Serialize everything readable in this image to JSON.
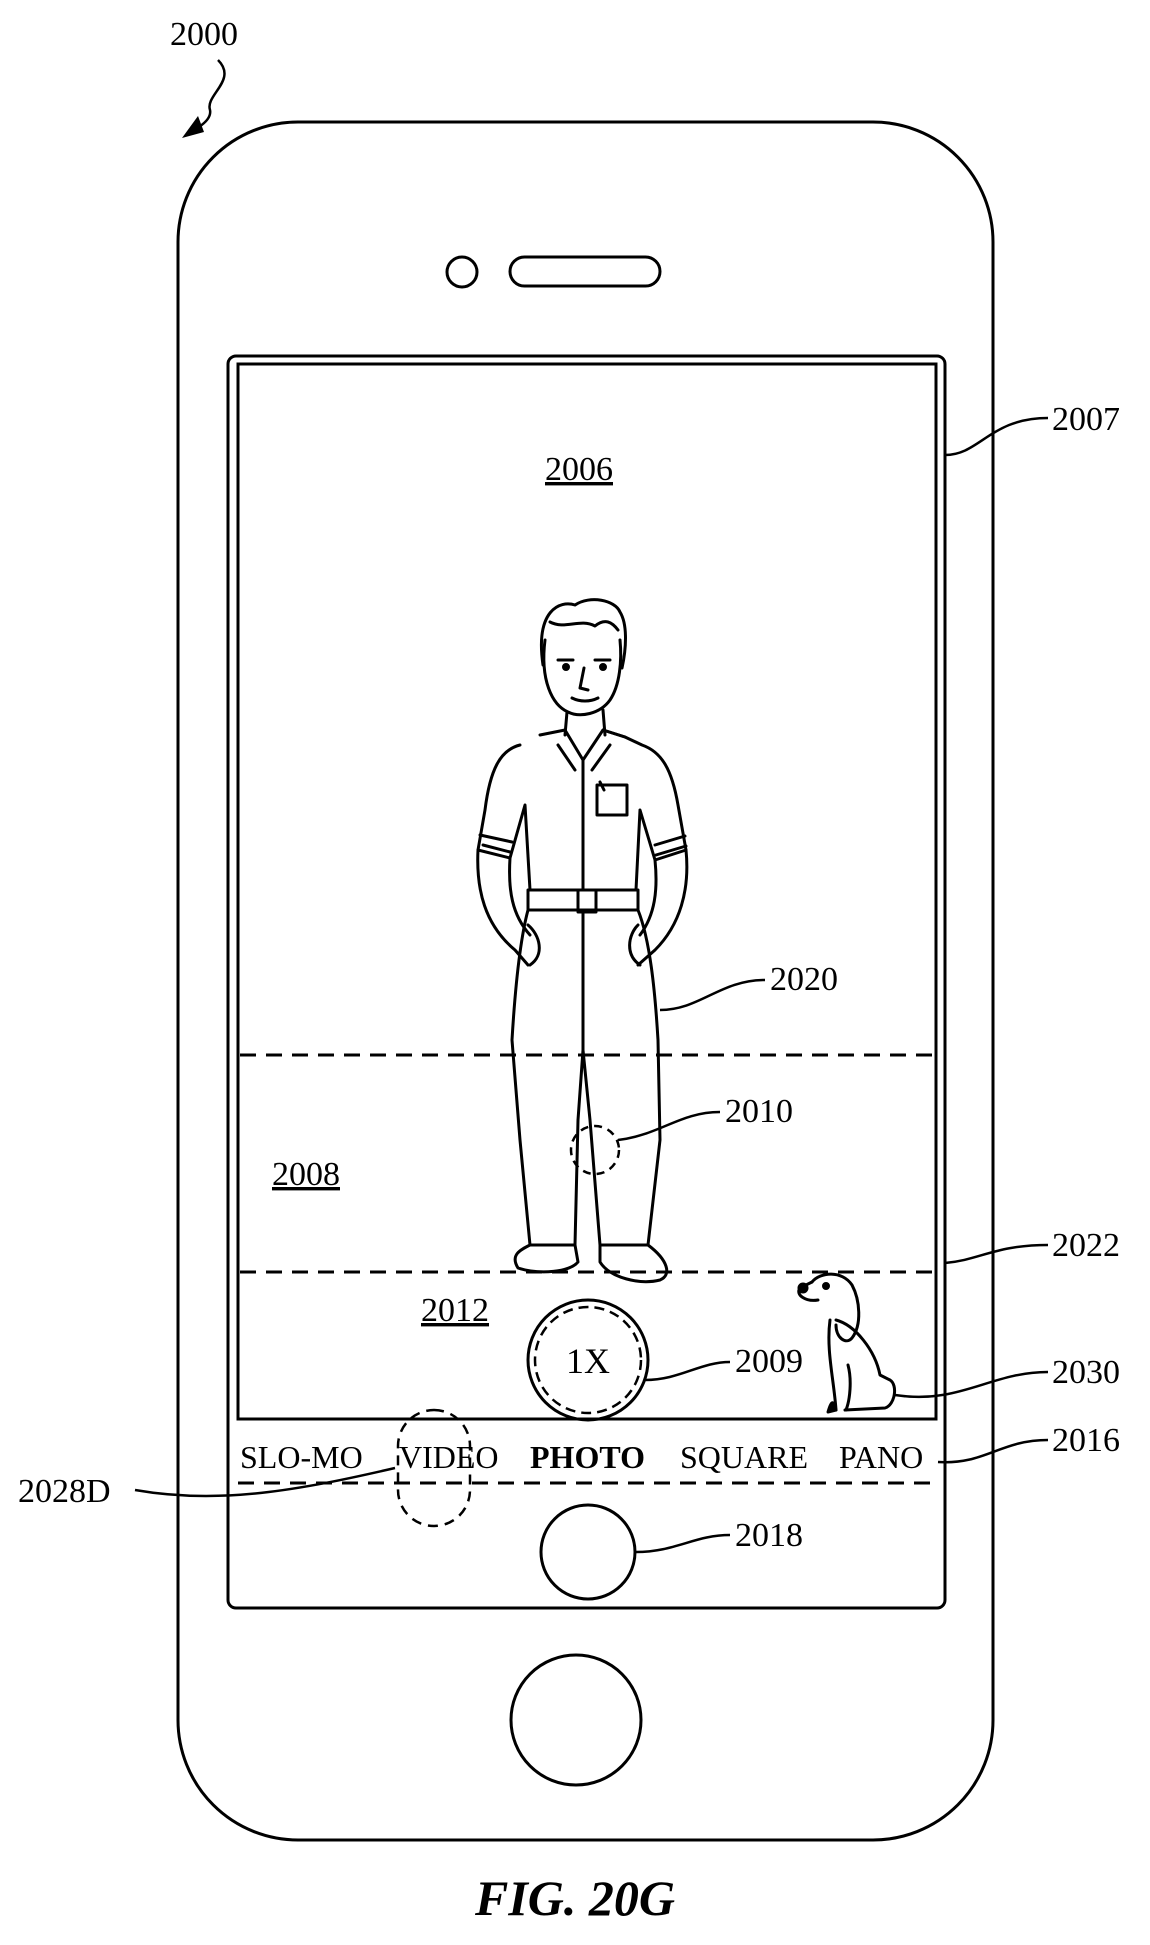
{
  "figure": {
    "caption": "FIG. 20G",
    "device_ref": "2000"
  },
  "refs": {
    "display": "2007",
    "camera_ui": "2006",
    "region_middle": "2008",
    "region_bottom": "2012",
    "zoom_control": "2009",
    "touch_point": "2010",
    "person": "2020",
    "boundary": "2022",
    "dog": "2030",
    "mode_strip": "2016",
    "shutter": "2018",
    "touch_mode": "2028D"
  },
  "zoom": {
    "label": "1X"
  },
  "modes": [
    "SLO-MO",
    "VIDEO",
    "PHOTO",
    "SQUARE",
    "PANO"
  ],
  "selected_mode": "PHOTO"
}
